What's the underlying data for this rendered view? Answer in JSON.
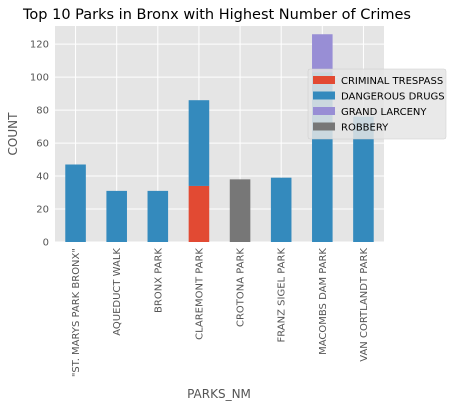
{
  "chart_data": {
    "type": "bar",
    "stacked": true,
    "title": "Top 10 Parks in Bronx with Highest Number of Crimes",
    "xlabel": "PARKS_NM",
    "ylabel": "COUNT",
    "ylim": [
      0,
      131
    ],
    "yticks": [
      0,
      20,
      40,
      60,
      80,
      100,
      120
    ],
    "grid": true,
    "legend_position": "right",
    "categories": [
      "\"ST. MARYS PARK BRONX\"",
      "AQUEDUCT WALK",
      "BRONX PARK",
      "CLAREMONT PARK",
      "CROTONA PARK",
      "FRANZ SIGEL PARK",
      "MACOMBS DAM PARK",
      "VAN CORTLANDT PARK"
    ],
    "series": [
      {
        "name": "CRIMINAL TRESPASS",
        "color": "#E24A33",
        "values": [
          0,
          0,
          0,
          34,
          0,
          0,
          0,
          0
        ]
      },
      {
        "name": "DANGEROUS DRUGS",
        "color": "#348ABD",
        "values": [
          47,
          31,
          31,
          52,
          0,
          39,
          103,
          76
        ]
      },
      {
        "name": "GRAND LARCENY",
        "color": "#988ED5",
        "values": [
          0,
          0,
          0,
          0,
          0,
          0,
          23,
          0
        ]
      },
      {
        "name": "ROBBERY",
        "color": "#777777",
        "values": [
          0,
          0,
          0,
          0,
          38,
          0,
          0,
          0
        ]
      }
    ]
  }
}
